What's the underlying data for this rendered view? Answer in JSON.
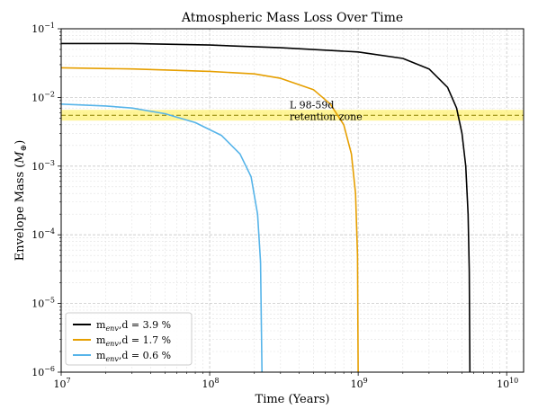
{
  "chart_data": {
    "type": "line",
    "title": "Atmospheric Mass Loss Over Time",
    "xlabel": "Time (Years)",
    "ylabel_main": "Envelope Mass (",
    "ylabel_symbol": "M",
    "ylabel_subscript": "⊕",
    "ylabel_close": ")",
    "xscale": "log",
    "yscale": "log",
    "xlim": [
      10000000.0,
      13000000000.0
    ],
    "ylim": [
      1e-06,
      0.1
    ],
    "grid": true,
    "legend_position": "lower-left",
    "x_ticks": [
      {
        "base": "10",
        "exp": "7",
        "value": 10000000.0
      },
      {
        "base": "10",
        "exp": "8",
        "value": 100000000.0
      },
      {
        "base": "10",
        "exp": "9",
        "value": 1000000000.0
      },
      {
        "base": "10",
        "exp": "10",
        "value": 10000000000.0
      }
    ],
    "y_ticks": [
      {
        "base": "10",
        "exp": "−1",
        "value": 0.1
      },
      {
        "base": "10",
        "exp": "−2",
        "value": 0.01
      },
      {
        "base": "10",
        "exp": "−3",
        "value": 0.001
      },
      {
        "base": "10",
        "exp": "−4",
        "value": 0.0001
      },
      {
        "base": "10",
        "exp": "−5",
        "value": 1e-05
      },
      {
        "base": "10",
        "exp": "−6",
        "value": 1e-06
      }
    ],
    "series": [
      {
        "label_pre": "m",
        "label_sub": "env",
        "label_post": ",d = 3.9 %",
        "color": "#000000",
        "points": [
          [
            10000000.0,
            0.061
          ],
          [
            30000000.0,
            0.061
          ],
          [
            100000000.0,
            0.058
          ],
          [
            300000000.0,
            0.053
          ],
          [
            1000000000.0,
            0.046
          ],
          [
            2000000000.0,
            0.037
          ],
          [
            3000000000.0,
            0.026
          ],
          [
            4000000000.0,
            0.014
          ],
          [
            4600000000.0,
            0.007
          ],
          [
            5000000000.0,
            0.003
          ],
          [
            5300000000.0,
            0.001
          ],
          [
            5500000000.0,
            0.0002
          ],
          [
            5600000000.0,
            3e-05
          ],
          [
            5650000000.0,
            1e-06
          ]
        ]
      },
      {
        "label_pre": "m",
        "label_sub": "env",
        "label_post": ",d = 1.7 %",
        "color": "#E69F00",
        "points": [
          [
            10000000.0,
            0.027
          ],
          [
            30000000.0,
            0.026
          ],
          [
            100000000.0,
            0.024
          ],
          [
            200000000.0,
            0.022
          ],
          [
            300000000.0,
            0.019
          ],
          [
            500000000.0,
            0.013
          ],
          [
            650000000.0,
            0.008
          ],
          [
            800000000.0,
            0.004
          ],
          [
            900000000.0,
            0.0015
          ],
          [
            960000000.0,
            0.0004
          ],
          [
            990000000.0,
            5e-05
          ],
          [
            1000000000.0,
            1e-06
          ]
        ]
      },
      {
        "label_pre": "m",
        "label_sub": "env",
        "label_post": ",d = 0.6 %",
        "color": "#56B4E9",
        "points": [
          [
            10000000.0,
            0.008
          ],
          [
            20000000.0,
            0.0075
          ],
          [
            30000000.0,
            0.007
          ],
          [
            50000000.0,
            0.0058
          ],
          [
            80000000.0,
            0.0043
          ],
          [
            120000000.0,
            0.0028
          ],
          [
            160000000.0,
            0.0015
          ],
          [
            190000000.0,
            0.0007
          ],
          [
            210000000.0,
            0.0002
          ],
          [
            220000000.0,
            4e-05
          ],
          [
            225000000.0,
            1e-06
          ]
        ]
      }
    ],
    "band": {
      "y_low": 0.0046,
      "y_high": 0.0066,
      "y_line": 0.0055,
      "color": "#FFF176",
      "line_color": "#8B8000"
    },
    "annotation_lines": [
      "L 98-59d",
      "retention zone"
    ],
    "annotation_at": [
      300000000.0,
      0.0062
    ]
  }
}
